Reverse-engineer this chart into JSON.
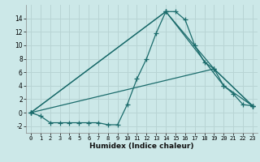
{
  "xlabel": "Humidex (Indice chaleur)",
  "bg_color": "#cce8e8",
  "grid_color": "#b8d4d4",
  "line_color": "#1a6b6b",
  "line1_x": [
    0,
    1,
    2,
    3,
    4,
    5,
    6,
    7,
    8,
    9,
    10,
    11,
    12,
    13,
    14,
    15,
    16,
    17,
    18,
    19,
    20,
    21,
    22,
    23
  ],
  "line1_y": [
    0,
    -0.5,
    -1.5,
    -1.5,
    -1.5,
    -1.5,
    -1.5,
    -1.5,
    -1.8,
    -1.8,
    1.2,
    5.0,
    8.0,
    11.8,
    15.0,
    15.0,
    13.8,
    10.0,
    7.5,
    6.5,
    4.0,
    2.8,
    1.2,
    1.0
  ],
  "line2_x": [
    0,
    14,
    19,
    23
  ],
  "line2_y": [
    0,
    15.0,
    6.5,
    1.0
  ],
  "line3_x": [
    0,
    14,
    20,
    23
  ],
  "line3_y": [
    0,
    15.0,
    4.0,
    1.0
  ],
  "line4_x": [
    0,
    19,
    23
  ],
  "line4_y": [
    0,
    6.5,
    1.0
  ],
  "xlim": [
    -0.5,
    23.5
  ],
  "ylim": [
    -3,
    16
  ],
  "yticks": [
    -2,
    0,
    2,
    4,
    6,
    8,
    10,
    12,
    14
  ],
  "xticks": [
    0,
    1,
    2,
    3,
    4,
    5,
    6,
    7,
    8,
    9,
    10,
    11,
    12,
    13,
    14,
    15,
    16,
    17,
    18,
    19,
    20,
    21,
    22,
    23
  ]
}
